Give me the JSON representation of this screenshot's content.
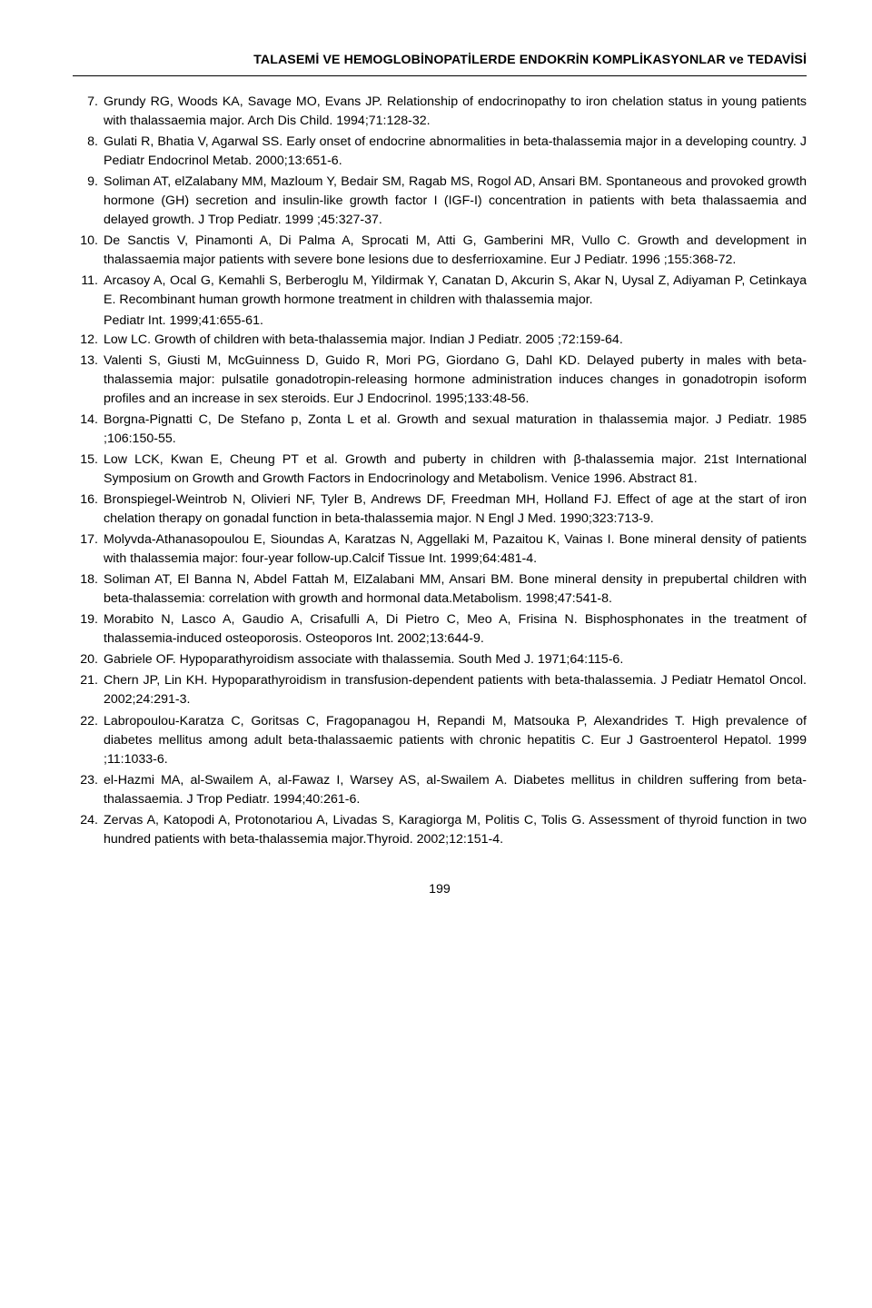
{
  "header": {
    "title": "TALASEMİ VE HEMOGLOBİNOPATİLERDE ENDOKRİN KOMPLİKASYONLAR ve TEDAVİSİ"
  },
  "page_number": "199",
  "references": [
    {
      "n": "7.",
      "t": "Grundy RG, Woods KA, Savage MO, Evans JP. Relationship of endocrinopathy to iron chelation status in young patients with thalassaemia major. Arch Dis Child. 1994;71:128-32."
    },
    {
      "n": "8.",
      "t": "Gulati R, Bhatia V, Agarwal SS. Early onset of endocrine abnormalities in beta-thalassemia major in a developing country. J Pediatr Endocrinol Metab. 2000;13:651-6."
    },
    {
      "n": "9.",
      "t": "Soliman AT, elZalabany MM, Mazloum Y, Bedair SM, Ragab MS, Rogol AD, Ansari BM. Spontaneous and provoked growth hormone (GH) secretion and insulin-like growth factor I (IGF-I) concentration in patients with beta thalassaemia and delayed growth. J Trop Pediatr. 1999 ;45:327-37."
    },
    {
      "n": "10.",
      "t": "De Sanctis V, Pinamonti A, Di Palma A, Sprocati M, Atti G, Gamberini MR, Vullo C. Growth and development in thalassaemia major patients with severe bone lesions due to desferrioxamine. Eur J Pediatr. 1996 ;155:368-72."
    },
    {
      "n": "11.",
      "t": "Arcasoy A, Ocal G, Kemahli S, Berberoglu M, Yildirmak Y, Canatan D, Akcurin S, Akar N, Uysal Z, Adiyaman P, Cetinkaya E. Recombinant human growth hormone treatment in children with thalassemia major.",
      "sub": "Pediatr Int. 1999;41:655-61."
    },
    {
      "n": "12.",
      "t": "Low LC. Growth of children with beta-thalassemia major. Indian J Pediatr. 2005 ;72:159-64."
    },
    {
      "n": "13.",
      "t": "Valenti S, Giusti M, McGuinness D, Guido R, Mori PG, Giordano G, Dahl KD. Delayed puberty in males with beta-thalassemia major: pulsatile gonadotropin-releasing hormone administration induces changes in gonadotropin isoform profiles and an increase in sex steroids. Eur J Endocrinol. 1995;133:48-56."
    },
    {
      "n": "14.",
      "t": "Borgna-Pignatti C, De Stefano p, Zonta L et al. Growth and sexual maturation in thalassemia major. J Pediatr. 1985 ;106:150-55."
    },
    {
      "n": "15.",
      "t": "Low LCK, Kwan E, Cheung PT et al. Growth and puberty in children with β-thalassemia major. 21st International Symposium on Growth and Growth Factors in Endocrinology and Metabolism. Venice 1996. Abstract 81."
    },
    {
      "n": "16.",
      "t": "Bronspiegel-Weintrob N, Olivieri NF, Tyler B, Andrews DF, Freedman MH, Holland FJ. Effect of age at the start of iron chelation therapy on gonadal function in beta-thalassemia major. N Engl J Med. 1990;323:713-9."
    },
    {
      "n": "17.",
      "t": "Molyvda-Athanasopoulou E, Sioundas A, Karatzas N, Aggellaki M, Pazaitou K, Vainas I. Bone mineral density of patients with thalassemia major: four-year follow-up.Calcif Tissue Int. 1999;64:481-4."
    },
    {
      "n": "18.",
      "t": "Soliman AT, El Banna N, Abdel Fattah M, ElZalabani MM, Ansari BM. Bone mineral density in prepubertal children with beta-thalassemia: correlation with growth and hormonal data.Metabolism. 1998;47:541-8."
    },
    {
      "n": "19.",
      "t": "Morabito N, Lasco A, Gaudio A, Crisafulli A, Di Pietro C, Meo A, Frisina N. Bisphosphonates in the treatment of thalassemia-induced osteoporosis. Osteoporos Int. 2002;13:644-9."
    },
    {
      "n": "20.",
      "t": "Gabriele OF. Hypoparathyroidism associate with thalassemia. South Med J. 1971;64:115-6."
    },
    {
      "n": "21.",
      "t": "Chern JP, Lin KH. Hypoparathyroidism in transfusion-dependent patients with beta-thalassemia. J Pediatr Hematol Oncol. 2002;24:291-3."
    },
    {
      "n": "22.",
      "t": "Labropoulou-Karatza C, Goritsas C, Fragopanagou H, Repandi M, Matsouka P, Alexandrides T. High prevalence of diabetes mellitus among adult beta-thalassaemic patients with chronic hepatitis C. Eur J Gastroenterol Hepatol. 1999 ;11:1033-6."
    },
    {
      "n": "23.",
      "t": "el-Hazmi MA, al-Swailem A, al-Fawaz I, Warsey AS, al-Swailem A. Diabetes mellitus in children suffering from beta-thalassaemia. J Trop Pediatr. 1994;40:261-6."
    },
    {
      "n": "24.",
      "t": "Zervas A, Katopodi A, Protonotariou A, Livadas S, Karagiorga M, Politis C, Tolis G. Assessment of thyroid function in two hundred patients with beta-thalassemia major.Thyroid. 2002;12:151-4."
    }
  ]
}
